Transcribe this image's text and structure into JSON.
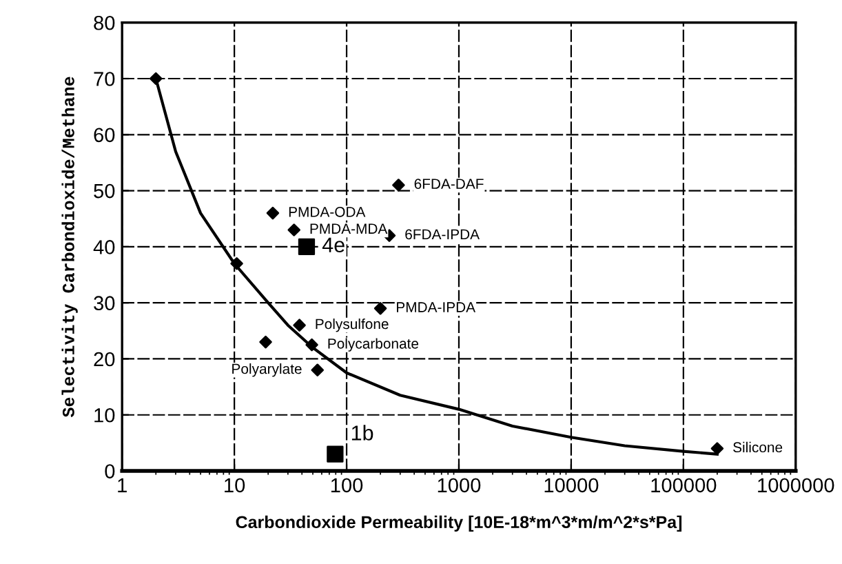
{
  "chart_data": {
    "type": "scatter",
    "xlabel": "Carbondioxide Permeability [10E-18*m^3*m/m^2*s*Pa]",
    "ylabel": "Selectivity Carbondioxide/Methane",
    "log": "x",
    "xlim": [
      1,
      1000000
    ],
    "xticks": [
      1,
      10,
      100,
      1000,
      10000,
      100000,
      1000000
    ],
    "ylim": [
      0,
      80
    ],
    "yticks": [
      0,
      10,
      20,
      30,
      40,
      50,
      60,
      70,
      80
    ],
    "grid": true,
    "legend": false,
    "series": [
      {
        "type": "line",
        "color": "#000000",
        "marker": "none",
        "x": [
          2,
          3,
          5,
          10,
          20,
          30,
          50,
          100,
          300,
          1000,
          3000,
          10000,
          30000,
          100000,
          200000
        ],
        "values": [
          70,
          57,
          46,
          37,
          30,
          26,
          22,
          17.5,
          13.5,
          11,
          8,
          6,
          4.5,
          3.5,
          3
        ]
      },
      {
        "type": "scatter",
        "color": "#000000",
        "marker": "diamond",
        "x": [
          2,
          10.5,
          22,
          34,
          290,
          240,
          200,
          38,
          19,
          49,
          55,
          200000
        ],
        "values": [
          70,
          37,
          46,
          43,
          51,
          42,
          29,
          26,
          23,
          22.5,
          18,
          4
        ]
      },
      {
        "type": "scatter",
        "color": "#000000",
        "marker": "square",
        "x": [
          44,
          79
        ],
        "values": [
          40,
          3
        ]
      }
    ],
    "annotations": [
      {
        "text": "PMDA-ODA",
        "x": 22,
        "y": 46
      },
      {
        "text": "PMDA-MDA",
        "x": 34,
        "y": 43
      },
      {
        "text": "6FDA-DAF",
        "x": 290,
        "y": 51
      },
      {
        "text": "6FDA-IPDA",
        "x": 240,
        "y": 42
      },
      {
        "text": "PMDA-IPDA",
        "x": 200,
        "y": 29
      },
      {
        "text": "Polysulfone",
        "x": 38,
        "y": 26
      },
      {
        "text": "Polycarbonate",
        "x": 49,
        "y": 22.5
      },
      {
        "text": "Polyarylate",
        "x": 55,
        "y": 18
      },
      {
        "text": "Silicone",
        "x": 200000,
        "y": 4
      },
      {
        "text": "4e",
        "x": 44,
        "y": 40
      },
      {
        "text": "1b",
        "x": 79,
        "y": 3
      }
    ]
  }
}
